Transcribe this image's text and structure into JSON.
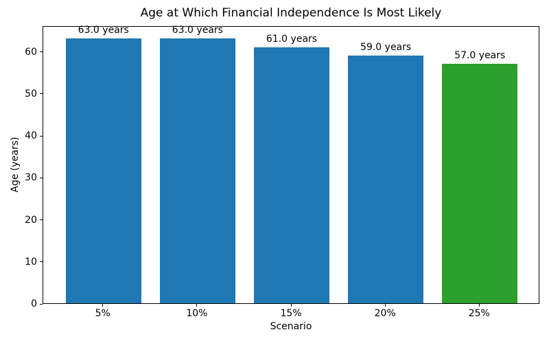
{
  "chart_data": {
    "type": "bar",
    "title": "Age at Which Financial Independence Is Most Likely",
    "xlabel": "Scenario",
    "ylabel": "Age (years)",
    "categories": [
      "5%",
      "10%",
      "15%",
      "20%",
      "25%"
    ],
    "values": [
      63.0,
      63.0,
      61.0,
      59.0,
      57.0
    ],
    "bar_labels": [
      "63.0 years",
      "63.0 years",
      "61.0 years",
      "59.0 years",
      "57.0 years"
    ],
    "bar_colors": [
      "#1f77b4",
      "#1f77b4",
      "#1f77b4",
      "#1f77b4",
      "#2ca02c"
    ],
    "default_bar_color": "#1f77b4",
    "highlight_bar_color": "#2ca02c",
    "ylim": [
      0,
      66.15
    ],
    "yticks": [
      0,
      10,
      20,
      30,
      40,
      50,
      60
    ],
    "grid": false,
    "legend": null,
    "frame_color": "#000000",
    "text_color": "#000000",
    "background_color": "#ffffff"
  }
}
